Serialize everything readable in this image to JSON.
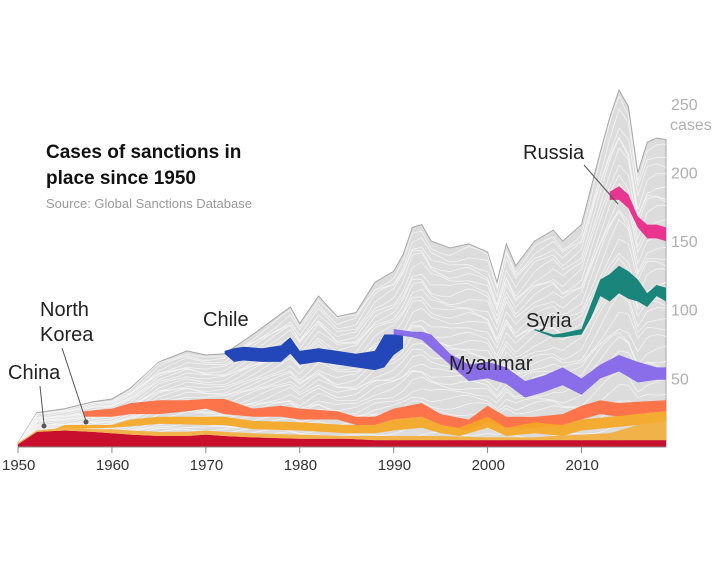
{
  "chart_data": {
    "type": "area",
    "title_lines": [
      "Cases of sanctions in",
      "place since 1950"
    ],
    "source": "Source: Global Sanctions Database",
    "ylabel_top": "250",
    "ylabel_unit": "cases",
    "ylim": [
      0,
      255
    ],
    "xlim": [
      1950,
      2019
    ],
    "y_ticks": [
      250,
      200,
      150,
      100,
      50
    ],
    "x_ticks": [
      "1950",
      "1960",
      "1970",
      "1980",
      "1990",
      "2000",
      "2010"
    ],
    "x_tick_values": [
      1950,
      1960,
      1970,
      1980,
      1990,
      2000,
      2010
    ],
    "grid": false,
    "legend": "none (direct labels)",
    "total": {
      "x": [
        1950,
        1952,
        1955,
        1958,
        1960,
        1962,
        1965,
        1968,
        1970,
        1972,
        1975,
        1977,
        1979,
        1980,
        1982,
        1984,
        1986,
        1988,
        1990,
        1991,
        1992,
        1993,
        1994,
        1996,
        1998,
        2000,
        2001,
        2002,
        2003,
        2005,
        2007,
        2008,
        2010,
        2012,
        2013,
        2014,
        2015,
        2016,
        2017,
        2018,
        2019
      ],
      "y": [
        3,
        25,
        28,
        33,
        35,
        43,
        62,
        70,
        67,
        68,
        82,
        92,
        102,
        90,
        110,
        95,
        98,
        120,
        128,
        140,
        160,
        162,
        150,
        145,
        148,
        142,
        120,
        148,
        132,
        150,
        158,
        150,
        162,
        215,
        240,
        260,
        248,
        200,
        222,
        225,
        224
      ]
    },
    "series": [
      {
        "name": "China",
        "color": "#c8102e",
        "x": [
          1950,
          1952,
          1955,
          1958,
          1960,
          1962,
          1965,
          1968,
          1970,
          1972,
          1975,
          1980,
          1985,
          1988,
          1990,
          1995,
          2000,
          2005,
          2010,
          2015,
          2019
        ],
        "base": [
          0,
          0,
          0,
          0,
          0,
          0,
          0,
          0,
          0,
          0,
          0,
          0,
          0,
          0,
          0,
          0,
          0,
          0,
          0,
          0,
          0
        ],
        "top": [
          2,
          11,
          12,
          11,
          10,
          9,
          8,
          8,
          9,
          8,
          7,
          6,
          6,
          5,
          5,
          5,
          5,
          5,
          5,
          5,
          5
        ]
      },
      {
        "name": "North Korea",
        "color": "#f2b24a",
        "x": [
          1950,
          1952,
          1955,
          1958,
          1960,
          1962,
          1965,
          1968,
          1970,
          1972,
          1975,
          1980,
          1985,
          1988,
          1990,
          1995,
          2000,
          2005,
          2007,
          2010,
          2013,
          2016,
          2019
        ],
        "base": [
          2,
          11,
          12,
          11,
          10,
          9,
          8,
          8,
          9,
          8,
          7,
          6,
          6,
          5,
          5,
          5,
          5,
          5,
          5,
          5,
          5,
          5,
          5
        ],
        "top": [
          3,
          12,
          14,
          13,
          13,
          12,
          11,
          11,
          12,
          11,
          10,
          9,
          8,
          8,
          8,
          8,
          7,
          7,
          8,
          9,
          10,
          16,
          19
        ]
      },
      {
        "name": "Chile",
        "color": "#2346b8",
        "x": [
          1972,
          1973,
          1974,
          1976,
          1978,
          1979,
          1980,
          1982,
          1984,
          1986,
          1988,
          1989,
          1990,
          1991
        ],
        "base": [
          68,
          62,
          63,
          62,
          62,
          68,
          60,
          62,
          60,
          58,
          56,
          58,
          67,
          72
        ],
        "top": [
          70,
          72,
          73,
          72,
          74,
          80,
          70,
          72,
          70,
          68,
          70,
          82,
          82,
          85
        ]
      },
      {
        "name": "Myanmar",
        "color": "#8a6de8",
        "x": [
          1990,
          1992,
          1993,
          1994,
          1996,
          1998,
          2000,
          2002,
          2004,
          2006,
          2008,
          2010,
          2012,
          2014,
          2016,
          2018,
          2019
        ],
        "base": [
          82,
          80,
          78,
          72,
          60,
          48,
          50,
          46,
          36,
          40,
          45,
          38,
          50,
          55,
          47,
          49,
          49
        ],
        "top": [
          86,
          84,
          84,
          82,
          68,
          60,
          62,
          58,
          48,
          52,
          58,
          50,
          60,
          67,
          62,
          58,
          58
        ]
      },
      {
        "name": "Syria",
        "color": "#1a857a",
        "x": [
          2005,
          2007,
          2008,
          2010,
          2011,
          2012,
          2013,
          2014,
          2015,
          2016,
          2017,
          2018,
          2019
        ],
        "base": [
          85,
          80,
          80,
          82,
          94,
          110,
          106,
          112,
          108,
          106,
          102,
          110,
          106
        ],
        "top": [
          86,
          82,
          83,
          86,
          104,
          122,
          126,
          132,
          128,
          122,
          112,
          118,
          116
        ]
      },
      {
        "name": "Russia",
        "color": "#e8358f",
        "x": [
          2013,
          2014,
          2015,
          2016,
          2017,
          2018,
          2019
        ],
        "base": [
          180,
          180,
          174,
          160,
          152,
          152,
          150
        ],
        "top": [
          186,
          190,
          184,
          168,
          162,
          162,
          160
        ]
      }
    ],
    "annotations": [
      "China",
      "North",
      "Korea",
      "Chile",
      "Myanmar",
      "Syria",
      "Russia"
    ]
  }
}
